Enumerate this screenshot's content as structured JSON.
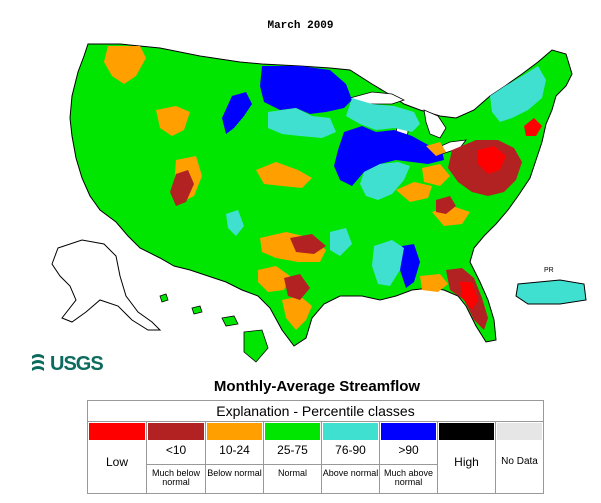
{
  "map": {
    "title": "March 2009",
    "colors": {
      "low": "#ff0000",
      "much_below": "#b22222",
      "below": "#ff9f00",
      "normal": "#00e600",
      "above": "#40e0d0",
      "much_above": "#0000ff",
      "high": "#000000",
      "no_data": "#e6e6e6",
      "outline": "#000000",
      "background": "#ffffff"
    },
    "inset_label_pr": "PR"
  },
  "logo": {
    "text": "USGS"
  },
  "legend": {
    "title": "Monthly-Average Streamflow",
    "explanation": "Explanation - Percentile classes",
    "classes": [
      {
        "key": "low",
        "range": "",
        "big": "Low",
        "desc": "",
        "color": "#ff0000"
      },
      {
        "key": "much_below",
        "range": "<10",
        "big": "",
        "desc": "Much below normal",
        "color": "#b22222"
      },
      {
        "key": "below",
        "range": "10-24",
        "big": "",
        "desc": "Below normal",
        "color": "#ff9f00"
      },
      {
        "key": "normal",
        "range": "25-75",
        "big": "",
        "desc": "Normal",
        "color": "#00e600"
      },
      {
        "key": "above",
        "range": "76-90",
        "big": "",
        "desc": "Above normal",
        "color": "#40e0d0"
      },
      {
        "key": "much_above",
        "range": ">90",
        "big": "",
        "desc": "Much above normal",
        "color": "#0000ff"
      },
      {
        "key": "high",
        "range": "",
        "big": "High",
        "desc": "",
        "color": "#000000"
      },
      {
        "key": "no_data",
        "range": "",
        "big": "No Data",
        "desc": "",
        "color": "#e6e6e6"
      }
    ]
  }
}
